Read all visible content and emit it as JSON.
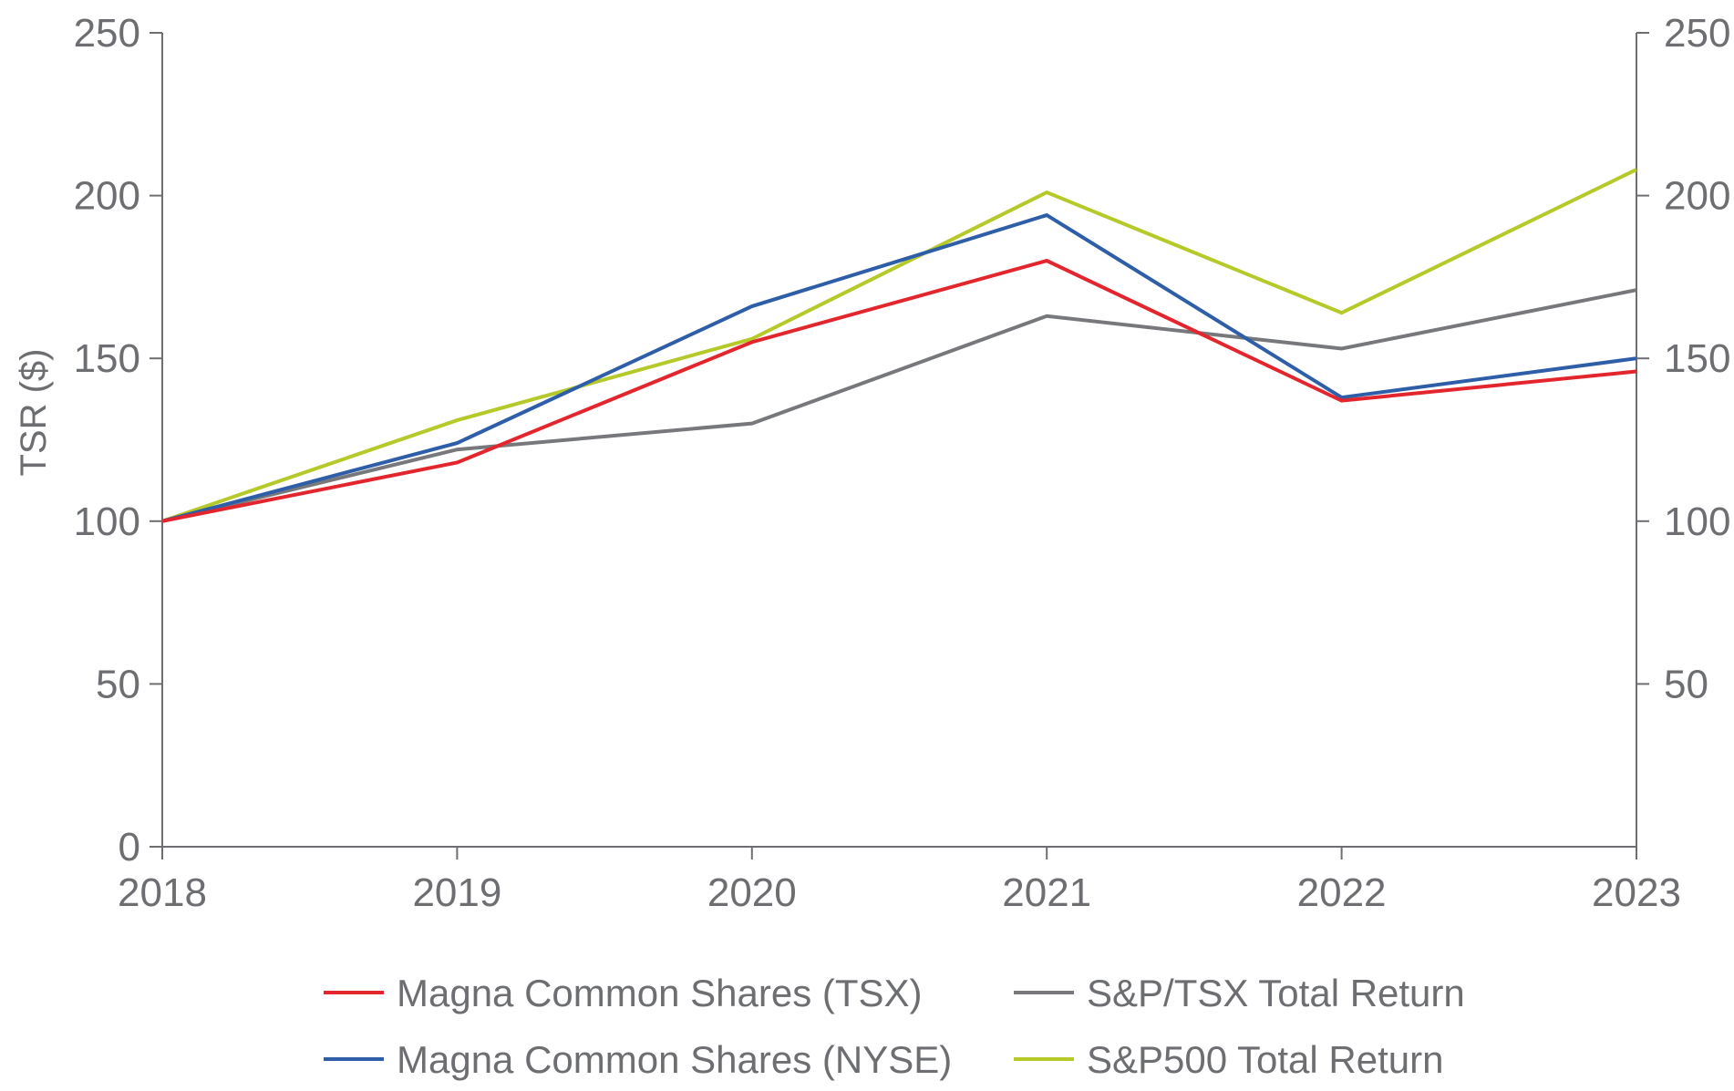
{
  "chart_data": {
    "type": "line",
    "title": "",
    "xlabel": "",
    "ylabel": "TSR ($)",
    "ylim": [
      0,
      250
    ],
    "yticks": [
      0,
      50,
      100,
      150,
      200,
      250
    ],
    "yticks_right": [
      50,
      100,
      150,
      200,
      250
    ],
    "grid": false,
    "legend_position": "bottom",
    "categories": [
      "2018",
      "2019",
      "2020",
      "2021",
      "2022",
      "2023"
    ],
    "series": [
      {
        "name": "Magna Common Shares (TSX)",
        "color": "#e3262d",
        "values": [
          100,
          118,
          155,
          180,
          137,
          146
        ]
      },
      {
        "name": "Magna Common Shares (NYSE)",
        "color": "#2e5ea8",
        "values": [
          100,
          124,
          166,
          194,
          138,
          150
        ]
      },
      {
        "name": "S&P/TSX Total Return",
        "color": "#77787b",
        "values": [
          100,
          122,
          130,
          163,
          153,
          171
        ]
      },
      {
        "name": "S&P500 Total Return",
        "color": "#b5c929",
        "values": [
          100,
          131,
          156,
          201,
          164,
          208
        ]
      }
    ]
  }
}
